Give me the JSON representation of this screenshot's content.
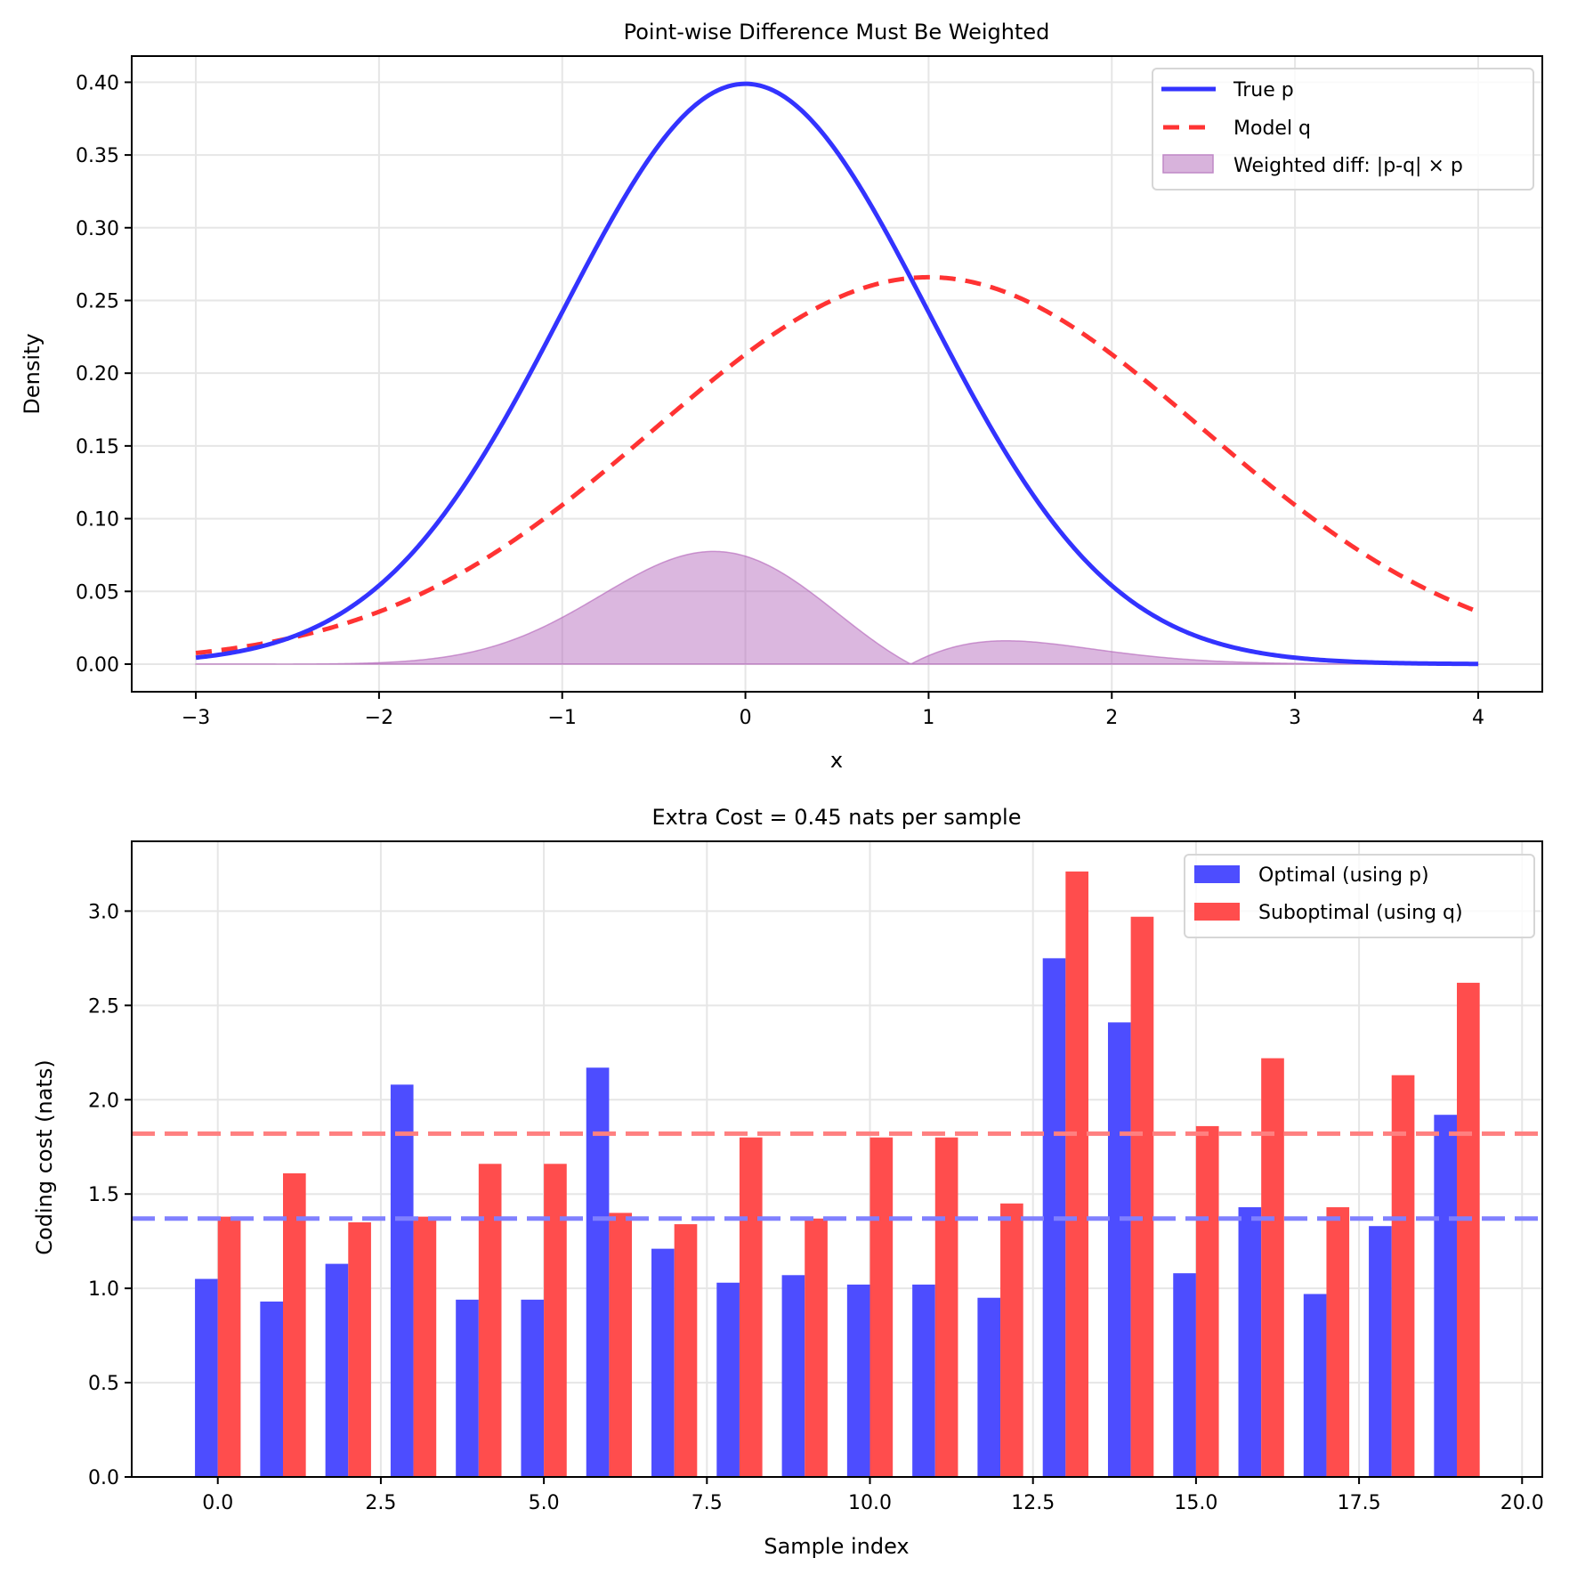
{
  "chart_data": [
    {
      "type": "line",
      "title": "Point-wise Difference Must Be Weighted",
      "xlabel": "x",
      "ylabel": "Density",
      "xlim": [
        -3.35,
        4.35
      ],
      "ylim": [
        -0.019,
        0.418
      ],
      "x_domain": [
        -3,
        4
      ],
      "xticks": [
        -3,
        -2,
        -1,
        0,
        1,
        2,
        3,
        4
      ],
      "xtick_labels": [
        "−3",
        "−2",
        "−1",
        "0",
        "1",
        "2",
        "3",
        "4"
      ],
      "yticks": [
        0.0,
        0.05,
        0.1,
        0.15,
        0.2,
        0.25,
        0.3,
        0.35,
        0.4
      ],
      "ytick_labels": [
        "0.00",
        "0.05",
        "0.10",
        "0.15",
        "0.20",
        "0.25",
        "0.30",
        "0.35",
        "0.40"
      ],
      "grid": true,
      "legend_position": "top-right",
      "series": [
        {
          "name": "True p",
          "kind": "line",
          "style": "solid",
          "color": "#3333ff",
          "distribution": {
            "mean": 0,
            "std": 1
          },
          "x": [
            -3,
            -2,
            -1,
            0,
            1,
            2,
            3,
            4
          ],
          "y": [
            0.0044,
            0.054,
            0.242,
            0.399,
            0.242,
            0.054,
            0.0044,
            0.0001
          ]
        },
        {
          "name": "Model q",
          "kind": "line",
          "style": "dashed",
          "color": "#ff3333",
          "distribution": {
            "mean": 1,
            "std": 1.5
          },
          "x": [
            -3,
            -2,
            -1,
            0,
            1,
            2,
            3,
            4
          ],
          "y": [
            0.0076,
            0.036,
            0.1093,
            0.213,
            0.266,
            0.213,
            0.1093,
            0.036
          ]
        },
        {
          "name": "Weighted diff: |p-q| × p",
          "kind": "area",
          "color": "#b05fb8",
          "x": [
            -3,
            -2,
            -1,
            -0.18,
            0,
            0.93,
            1.4,
            2,
            3,
            4
          ],
          "y": [
            0.0,
            0.001,
            0.032,
            0.077,
            0.074,
            0.0,
            0.015,
            0.009,
            0.0004,
            0.0
          ]
        }
      ]
    },
    {
      "type": "bar",
      "title": "Extra Cost = 0.45 nats per sample",
      "xlabel": "Sample index",
      "ylabel": "Coding cost (nats)",
      "xlim": [
        -1.32,
        20.31
      ],
      "ylim": [
        0,
        3.37
      ],
      "xticks": [
        0,
        2.5,
        5,
        7.5,
        10,
        12.5,
        15,
        17.5,
        20
      ],
      "xtick_labels": [
        "0.0",
        "2.5",
        "5.0",
        "7.5",
        "10.0",
        "12.5",
        "15.0",
        "17.5",
        "20.0"
      ],
      "yticks": [
        0,
        0.5,
        1.0,
        1.5,
        2.0,
        2.5,
        3.0
      ],
      "ytick_labels": [
        "0.0",
        "0.5",
        "1.0",
        "1.5",
        "2.0",
        "2.5",
        "3.0"
      ],
      "grid": true,
      "legend_position": "top-right",
      "bar_width": 0.35,
      "categories": [
        0,
        1,
        2,
        3,
        4,
        5,
        6,
        7,
        8,
        9,
        10,
        11,
        12,
        13,
        14,
        15,
        16,
        17,
        18,
        19
      ],
      "series": [
        {
          "name": "Optimal (using p)",
          "color": "#4d4dff",
          "values": [
            1.05,
            0.93,
            1.13,
            2.08,
            0.94,
            0.94,
            2.17,
            1.21,
            1.03,
            1.07,
            1.02,
            1.02,
            0.95,
            2.75,
            2.41,
            1.08,
            1.43,
            0.97,
            1.33,
            1.92
          ]
        },
        {
          "name": "Suboptimal (using q)",
          "color": "#ff4d4d",
          "values": [
            1.38,
            1.61,
            1.35,
            1.38,
            1.66,
            1.66,
            1.4,
            1.34,
            1.8,
            1.37,
            1.8,
            1.8,
            1.45,
            3.21,
            2.97,
            1.86,
            2.22,
            1.43,
            2.13,
            2.62
          ]
        }
      ],
      "reference_lines": [
        {
          "name": "mean-optimal",
          "value": 1.37,
          "color": "#8080ff",
          "style": "dashed"
        },
        {
          "name": "mean-suboptimal",
          "value": 1.82,
          "color": "#ff8080",
          "style": "dashed"
        }
      ]
    }
  ]
}
